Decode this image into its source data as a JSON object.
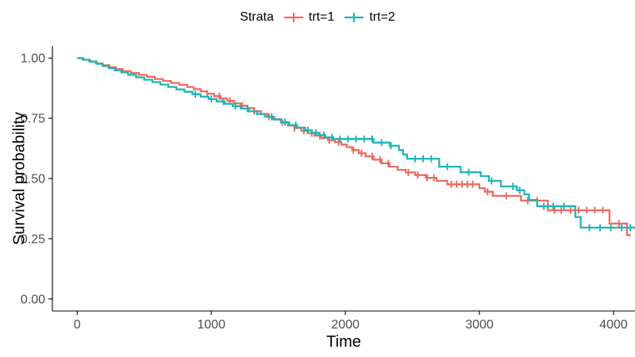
{
  "chart_data": {
    "type": "line",
    "subtype": "kaplan-meier-step",
    "title": "",
    "xlabel": "Time",
    "ylabel": "Survival probability",
    "grid": false,
    "legend": {
      "title": "Strata",
      "position": "top"
    },
    "xlim": [
      -185,
      4160
    ],
    "ylim": [
      -0.05,
      1.05
    ],
    "x_ticks": {
      "values": [
        0,
        1000,
        2000,
        3000,
        4000
      ],
      "labels": [
        "0",
        "1000",
        "2000",
        "3000",
        "4000"
      ]
    },
    "y_ticks": {
      "values": [
        0,
        0.25,
        0.5,
        0.75,
        1
      ],
      "labels": [
        "0.00",
        "0.25",
        "0.50",
        "0.75",
        "1.00"
      ]
    },
    "axis_color": "#000000",
    "tick_label_color": "#4d4d4d",
    "series": [
      {
        "name": "trt=1",
        "color": "#ee6a5f",
        "end_time": 4130,
        "steps": [
          [
            0,
            1.0
          ],
          [
            40,
            0.993
          ],
          [
            90,
            0.986
          ],
          [
            140,
            0.978
          ],
          [
            190,
            0.97
          ],
          [
            240,
            0.962
          ],
          [
            290,
            0.954
          ],
          [
            340,
            0.946
          ],
          [
            400,
            0.938
          ],
          [
            460,
            0.93
          ],
          [
            520,
            0.922
          ],
          [
            580,
            0.913
          ],
          [
            640,
            0.905
          ],
          [
            700,
            0.897
          ],
          [
            760,
            0.889
          ],
          [
            820,
            0.88
          ],
          [
            870,
            0.871
          ],
          [
            920,
            0.862
          ],
          [
            970,
            0.852
          ],
          [
            1020,
            0.842
          ],
          [
            1070,
            0.832
          ],
          [
            1120,
            0.822
          ],
          [
            1170,
            0.812
          ],
          [
            1220,
            0.802
          ],
          [
            1270,
            0.792
          ],
          [
            1320,
            0.78
          ],
          [
            1370,
            0.768
          ],
          [
            1420,
            0.756
          ],
          [
            1470,
            0.744
          ],
          [
            1520,
            0.732
          ],
          [
            1570,
            0.72
          ],
          [
            1620,
            0.709
          ],
          [
            1670,
            0.698
          ],
          [
            1720,
            0.688
          ],
          [
            1770,
            0.678
          ],
          [
            1820,
            0.668
          ],
          [
            1870,
            0.659
          ],
          [
            1920,
            0.651
          ],
          [
            1970,
            0.641
          ],
          [
            2010,
            0.63
          ],
          [
            2050,
            0.618
          ],
          [
            2100,
            0.605
          ],
          [
            2150,
            0.592
          ],
          [
            2210,
            0.578
          ],
          [
            2270,
            0.563
          ],
          [
            2330,
            0.549
          ],
          [
            2390,
            0.536
          ],
          [
            2450,
            0.525
          ],
          [
            2520,
            0.514
          ],
          [
            2600,
            0.503
          ],
          [
            2680,
            0.49
          ],
          [
            2760,
            0.476
          ],
          [
            3000,
            0.46
          ],
          [
            3040,
            0.445
          ],
          [
            3100,
            0.428
          ],
          [
            3310,
            0.408
          ],
          [
            3510,
            0.368
          ],
          [
            3970,
            0.313
          ],
          [
            4100,
            0.265
          ]
        ],
        "censor_times": [
          970,
          1060,
          1140,
          1230,
          1320,
          1430,
          1530,
          1620,
          1690,
          1750,
          1810,
          1880,
          1950,
          2060,
          2120,
          2200,
          2260,
          2320,
          2470,
          2540,
          2610,
          2660,
          2790,
          2830,
          2870,
          2910,
          2950,
          3060,
          3200,
          3360,
          3430,
          3560,
          3610,
          3680,
          3740,
          3800,
          3860,
          3920,
          4040
        ]
      },
      {
        "name": "trt=2",
        "color": "#20b4b8",
        "end_time": 4160,
        "steps": [
          [
            0,
            1.0
          ],
          [
            45,
            0.993
          ],
          [
            95,
            0.985
          ],
          [
            145,
            0.976
          ],
          [
            190,
            0.967
          ],
          [
            235,
            0.958
          ],
          [
            280,
            0.949
          ],
          [
            330,
            0.94
          ],
          [
            380,
            0.93
          ],
          [
            440,
            0.92
          ],
          [
            500,
            0.91
          ],
          [
            560,
            0.9
          ],
          [
            620,
            0.89
          ],
          [
            680,
            0.88
          ],
          [
            740,
            0.87
          ],
          [
            800,
            0.86
          ],
          [
            860,
            0.85
          ],
          [
            920,
            0.84
          ],
          [
            980,
            0.83
          ],
          [
            1040,
            0.82
          ],
          [
            1100,
            0.81
          ],
          [
            1160,
            0.8
          ],
          [
            1220,
            0.79
          ],
          [
            1280,
            0.779
          ],
          [
            1340,
            0.768
          ],
          [
            1400,
            0.757
          ],
          [
            1460,
            0.746
          ],
          [
            1520,
            0.734
          ],
          [
            1580,
            0.722
          ],
          [
            1640,
            0.711
          ],
          [
            1700,
            0.7
          ],
          [
            1750,
            0.69
          ],
          [
            1800,
            0.68
          ],
          [
            1850,
            0.671
          ],
          [
            1910,
            0.664
          ],
          [
            2210,
            0.649
          ],
          [
            2330,
            0.636
          ],
          [
            2400,
            0.618
          ],
          [
            2430,
            0.6
          ],
          [
            2460,
            0.582
          ],
          [
            2700,
            0.549
          ],
          [
            2860,
            0.526
          ],
          [
            3010,
            0.51
          ],
          [
            3070,
            0.49
          ],
          [
            3160,
            0.467
          ],
          [
            3280,
            0.451
          ],
          [
            3335,
            0.434
          ],
          [
            3370,
            0.411
          ],
          [
            3430,
            0.385
          ],
          [
            3715,
            0.34
          ],
          [
            3755,
            0.296
          ]
        ],
        "censor_times": [
          880,
          1000,
          1090,
          1180,
          1270,
          1450,
          1550,
          1630,
          1720,
          1780,
          1840,
          1900,
          1960,
          2020,
          2080,
          2140,
          2200,
          2270,
          2340,
          2520,
          2580,
          2640,
          2760,
          2920,
          3090,
          3250,
          3300,
          3480,
          3550,
          3630,
          3820,
          3900,
          3980,
          4060,
          4125
        ]
      }
    ]
  }
}
